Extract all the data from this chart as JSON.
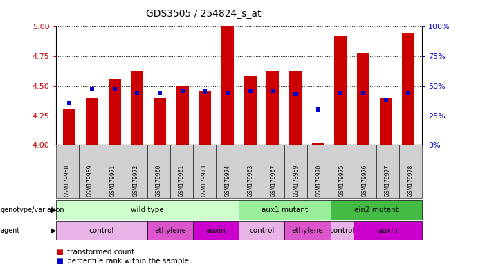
{
  "title": "GDS3505 / 254824_s_at",
  "samples": [
    "GSM179958",
    "GSM179959",
    "GSM179971",
    "GSM179972",
    "GSM179960",
    "GSM179961",
    "GSM179973",
    "GSM179974",
    "GSM179963",
    "GSM179967",
    "GSM179969",
    "GSM179970",
    "GSM179975",
    "GSM179976",
    "GSM179977",
    "GSM179978"
  ],
  "bar_values": [
    4.3,
    4.4,
    4.56,
    4.63,
    4.4,
    4.5,
    4.45,
    5.0,
    4.58,
    4.63,
    4.63,
    4.02,
    4.92,
    4.78,
    4.4,
    4.95
  ],
  "dot_percentile": [
    35,
    47,
    47,
    44,
    44,
    46,
    45,
    44,
    46,
    46,
    43,
    30,
    44,
    44,
    38,
    44
  ],
  "ylim_left": [
    4.0,
    5.0
  ],
  "ylim_right": [
    0,
    100
  ],
  "yticks_left": [
    4.0,
    4.25,
    4.5,
    4.75,
    5.0
  ],
  "yticks_right": [
    0,
    25,
    50,
    75,
    100
  ],
  "bar_color": "#cc0000",
  "dot_color": "#0000cc",
  "bar_bottom": 4.0,
  "genotype_groups": [
    {
      "label": "wild type",
      "start": 0,
      "end": 7,
      "color": "#ccffcc"
    },
    {
      "label": "aux1 mutant",
      "start": 8,
      "end": 11,
      "color": "#99ee99"
    },
    {
      "label": "ein2 mutant",
      "start": 12,
      "end": 15,
      "color": "#44bb44"
    }
  ],
  "agent_groups": [
    {
      "label": "control",
      "start": 0,
      "end": 3,
      "color": "#e8b4e8"
    },
    {
      "label": "ethylene",
      "start": 4,
      "end": 5,
      "color": "#dd55cc"
    },
    {
      "label": "auxin",
      "start": 6,
      "end": 7,
      "color": "#cc00cc"
    },
    {
      "label": "control",
      "start": 8,
      "end": 9,
      "color": "#e8b4e8"
    },
    {
      "label": "ethylene",
      "start": 10,
      "end": 11,
      "color": "#dd55cc"
    },
    {
      "label": "control",
      "start": 12,
      "end": 12,
      "color": "#e8b4e8"
    },
    {
      "label": "auxin",
      "start": 13,
      "end": 15,
      "color": "#cc00cc"
    }
  ],
  "legend_bar_label": "transformed count",
  "legend_dot_label": "percentile rank within the sample",
  "left_axis_color": "#cc0000",
  "right_axis_color": "#0000cc"
}
